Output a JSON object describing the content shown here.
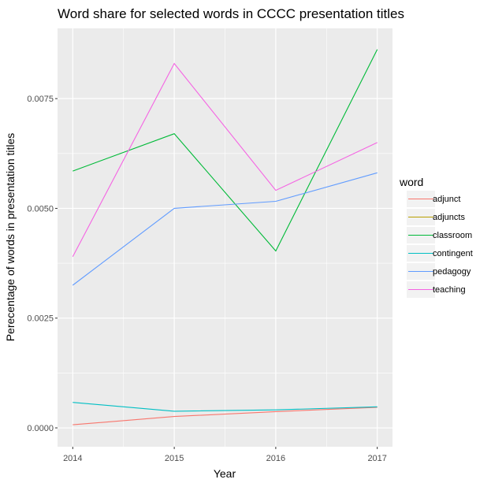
{
  "chart_data": {
    "type": "line",
    "title": "Word share for selected words in CCCC presentation titles",
    "xlabel": "Year",
    "ylabel": "Perecentage of words in presentation titles",
    "x": [
      2014,
      2015,
      2016,
      2017
    ],
    "x_ticks": [
      "2014",
      "2015",
      "2016",
      "2017"
    ],
    "y_ticks": [
      "0.0000",
      "0.0025",
      "0.0050",
      "0.0075"
    ],
    "y_tick_values": [
      0,
      0.0025,
      0.005,
      0.0075
    ],
    "xlim": [
      2013.85,
      2017.15
    ],
    "ylim": [
      -0.00043,
      0.0091
    ],
    "grid": true,
    "background": "#ebebeb",
    "legend": {
      "title": "word",
      "placement": "right"
    },
    "series": [
      {
        "name": "adjunct",
        "color": "#F8766D",
        "values": [
          7e-05,
          0.00026,
          0.00037,
          0.00047
        ]
      },
      {
        "name": "adjuncts",
        "color": "#B79F00",
        "values": [
          null,
          null,
          null,
          null
        ]
      },
      {
        "name": "classroom",
        "color": "#00BA38",
        "values": [
          0.00585,
          0.0067,
          0.00403,
          0.00862
        ]
      },
      {
        "name": "contingent",
        "color": "#00BFC4",
        "values": [
          0.00058,
          0.00038,
          0.00041,
          0.00048
        ]
      },
      {
        "name": "pedagogy",
        "color": "#619CFF",
        "values": [
          0.00325,
          0.005,
          0.00516,
          0.00581
        ]
      },
      {
        "name": "teaching",
        "color": "#F564E3",
        "values": [
          0.0039,
          0.0083,
          0.00541,
          0.0065
        ]
      }
    ]
  }
}
